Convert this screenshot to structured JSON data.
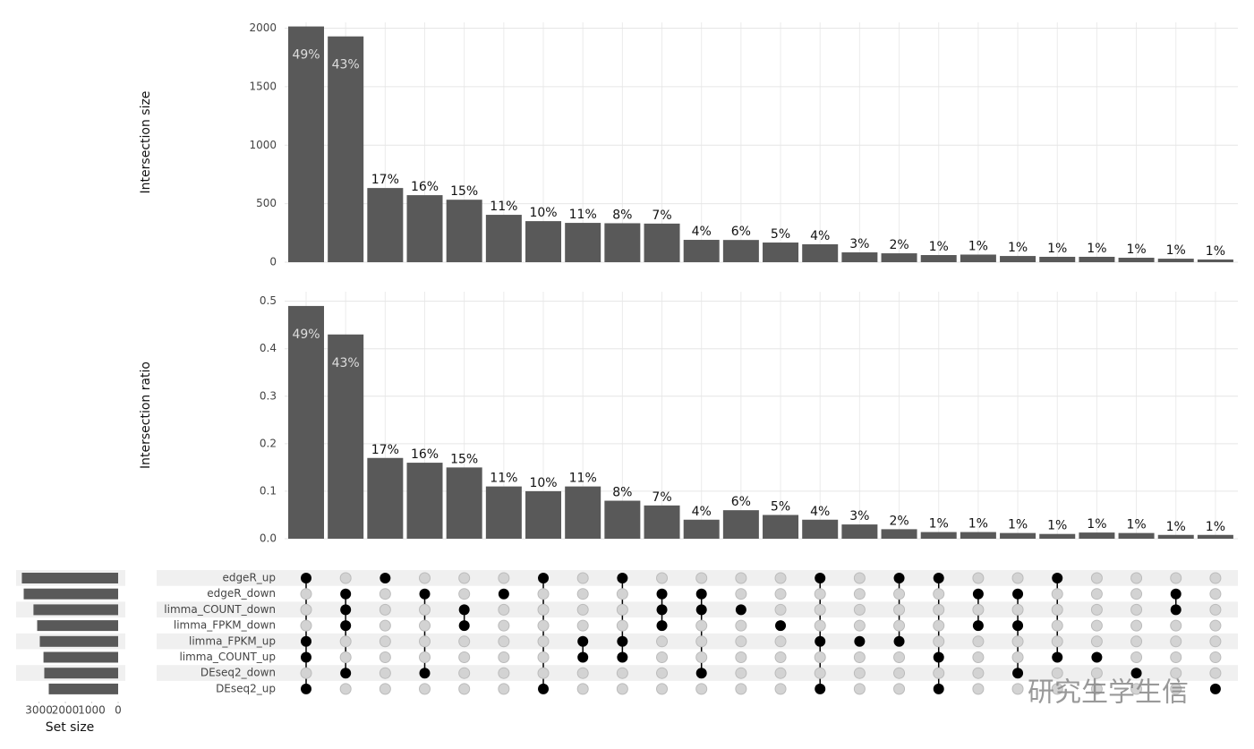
{
  "chart_data": [
    {
      "type": "bar",
      "y_label": "Intersection size",
      "values": [
        2015,
        1930,
        634,
        573,
        534,
        405,
        351,
        336,
        333,
        330,
        191,
        190,
        168,
        153,
        84,
        76,
        61,
        65,
        53,
        46,
        46,
        38,
        30,
        23
      ],
      "value_labels": [
        "49%",
        "43%",
        "17%",
        "16%",
        "15%",
        "11%",
        "10%",
        "11%",
        "8%",
        "7%",
        "4%",
        "6%",
        "5%",
        "4%",
        "3%",
        "2%",
        "1%",
        "1%",
        "1%",
        "1%",
        "1%",
        "1%",
        "1%",
        "1%"
      ],
      "color": "#595959",
      "ylim": [
        0,
        2050
      ],
      "yticks": [
        0,
        500,
        1000,
        1500,
        2000
      ],
      "grid": true
    },
    {
      "type": "bar",
      "y_label": "Intersection ratio",
      "values": [
        0.49,
        0.43,
        0.17,
        0.16,
        0.15,
        0.11,
        0.1,
        0.11,
        0.08,
        0.07,
        0.04,
        0.06,
        0.05,
        0.04,
        0.03,
        0.02,
        0.014,
        0.014,
        0.012,
        0.01,
        0.013,
        0.012,
        0.008,
        0.008
      ],
      "value_labels": [
        "49%",
        "43%",
        "17%",
        "16%",
        "15%",
        "11%",
        "10%",
        "11%",
        "8%",
        "7%",
        "4%",
        "6%",
        "5%",
        "4%",
        "3%",
        "2%",
        "1%",
        "1%",
        "1%",
        "1%",
        "1%",
        "1%",
        "1%",
        "1%"
      ],
      "color": "#595959",
      "ylim": [
        0,
        0.52
      ],
      "yticks": [
        {
          "value": 0,
          "label": "0.0"
        },
        0.1,
        0.2,
        0.3,
        0.4,
        0.5
      ],
      "grid": true
    },
    {
      "type": "matrix",
      "x_label": "Set size",
      "sets": [
        "edgeR_up",
        "edgeR_down",
        "limma_COUNT_down",
        "limma_FPKM_down",
        "limma_FPKM_up",
        "limma_COUNT_up",
        "DEseq2_down",
        "DEseq2_up"
      ],
      "set_sizes": [
        3650,
        3580,
        3210,
        3070,
        2970,
        2830,
        2800,
        2630
      ],
      "color": "#595959",
      "xlim": [
        3800,
        0
      ],
      "xticks": [
        3000,
        2000,
        1000,
        0
      ],
      "matrix": [
        [
          1,
          0,
          1,
          0,
          0,
          0,
          1,
          0,
          1,
          0,
          0,
          0,
          0,
          1,
          0,
          1,
          1,
          0,
          0,
          1,
          0,
          0,
          0,
          0
        ],
        [
          0,
          1,
          0,
          1,
          0,
          1,
          0,
          0,
          0,
          1,
          1,
          0,
          0,
          0,
          0,
          0,
          0,
          1,
          1,
          0,
          0,
          0,
          1,
          0
        ],
        [
          0,
          1,
          0,
          0,
          1,
          0,
          0,
          0,
          0,
          1,
          1,
          1,
          0,
          0,
          0,
          0,
          0,
          0,
          0,
          0,
          0,
          0,
          1,
          0
        ],
        [
          0,
          1,
          0,
          0,
          1,
          0,
          0,
          0,
          0,
          1,
          0,
          0,
          1,
          0,
          0,
          0,
          0,
          1,
          1,
          0,
          0,
          0,
          0,
          0
        ],
        [
          1,
          0,
          0,
          0,
          0,
          0,
          0,
          1,
          1,
          0,
          0,
          0,
          0,
          1,
          1,
          1,
          0,
          0,
          0,
          0,
          0,
          0,
          0,
          0
        ],
        [
          1,
          0,
          0,
          0,
          0,
          0,
          0,
          1,
          1,
          0,
          0,
          0,
          0,
          0,
          0,
          0,
          1,
          0,
          0,
          1,
          1,
          0,
          0,
          0
        ],
        [
          0,
          1,
          0,
          1,
          0,
          0,
          0,
          0,
          0,
          0,
          1,
          0,
          0,
          0,
          0,
          0,
          0,
          0,
          1,
          0,
          0,
          1,
          0,
          0
        ],
        [
          1,
          0,
          0,
          0,
          0,
          0,
          1,
          0,
          0,
          0,
          0,
          0,
          0,
          1,
          0,
          0,
          1,
          0,
          0,
          0,
          0,
          0,
          0,
          1
        ]
      ]
    },
    {
      "type": "watermark",
      "text": "研究生学生信"
    }
  ]
}
